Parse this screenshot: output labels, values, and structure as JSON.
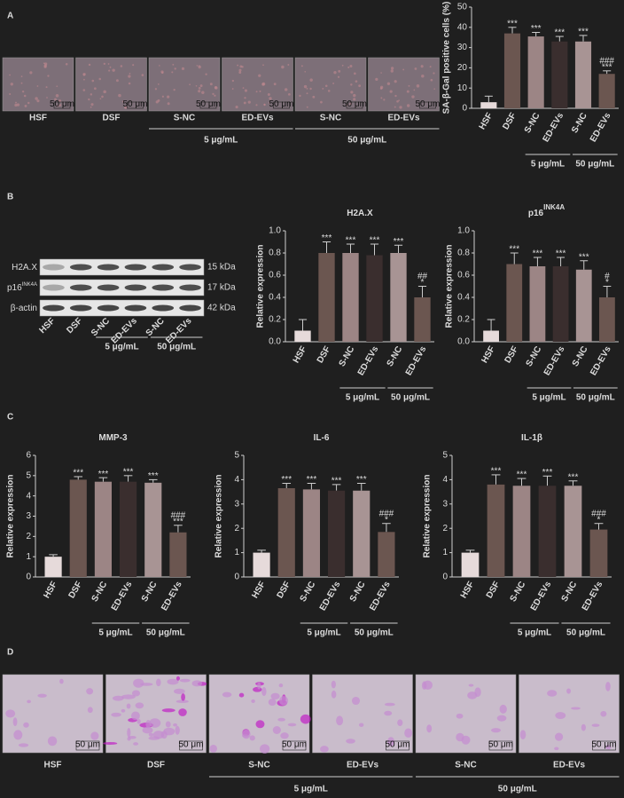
{
  "panels": {
    "labels": [
      "A",
      "B",
      "C",
      "D"
    ]
  },
  "panel_a_images": {
    "captions": [
      "HSF",
      "DSF",
      "S-NC",
      "ED-EVs",
      "S-NC",
      "ED-EVs"
    ],
    "scale_bar": "50 μm",
    "group_labels": [
      "5 μg/mL",
      "50 μg/mL"
    ]
  },
  "blot": {
    "lanes": [
      "HSF",
      "DSF",
      "S-NC",
      "ED-EVs",
      "S-NC",
      "ED-EVs"
    ],
    "rows": [
      {
        "label": "H2A.X",
        "size": "15 kDa"
      },
      {
        "label": "p16",
        "superscript": "INK4A",
        "size": "17 kDa"
      },
      {
        "label": "β-actin",
        "size": "42 kDa"
      }
    ],
    "group_labels": [
      "5 μg/mL",
      "50 μg/mL"
    ]
  },
  "panel_d_images": {
    "captions": [
      "HSF",
      "DSF",
      "S-NC",
      "ED-EVs",
      "S-NC",
      "ED-EVs"
    ],
    "scale_bar": "50 μm",
    "group_labels": [
      "5 μg/mL",
      "50 μg/mL"
    ]
  },
  "chart_data": [
    {
      "type": "bar",
      "y_label": "SA-β-Gal positive cells (%)",
      "categories": [
        "HSF",
        "DSF",
        "S-NC",
        "ED-EVs",
        "S-NC",
        "ED-EVs"
      ],
      "values": [
        3,
        37,
        35.5,
        33,
        33,
        17
      ],
      "errors": [
        3,
        3,
        2,
        2.5,
        3,
        1.5
      ],
      "annotations": [
        null,
        [
          "***"
        ],
        [
          "***"
        ],
        [
          "***"
        ],
        [
          "***"
        ],
        [
          "###",
          "***"
        ]
      ],
      "colors": [
        "#e6dada",
        "#6b5650",
        "#9c8585",
        "#3a2e2e",
        "#a89494",
        "#6b5650"
      ],
      "ylim": [
        0,
        50
      ],
      "yticks": [
        0,
        10,
        20,
        30,
        40,
        50
      ],
      "group_labels": [
        "5 μg/mL",
        "50 μg/mL"
      ]
    },
    {
      "type": "bar",
      "title": "H2A.X",
      "y_label": "Relative expression",
      "categories": [
        "HSF",
        "DSF",
        "S-NC",
        "ED-EVs",
        "S-NC",
        "ED-EVs"
      ],
      "values": [
        0.1,
        0.8,
        0.8,
        0.78,
        0.8,
        0.4
      ],
      "errors": [
        0.1,
        0.1,
        0.08,
        0.1,
        0.07,
        0.1
      ],
      "annotations": [
        null,
        [
          "***"
        ],
        [
          "***"
        ],
        [
          "***"
        ],
        [
          "***"
        ],
        [
          "##",
          "*"
        ]
      ],
      "colors": [
        "#e6dada",
        "#6b5650",
        "#9c8585",
        "#3a2e2e",
        "#a89494",
        "#6b5650"
      ],
      "ylim": [
        0,
        1
      ],
      "yticks": [
        {
          "value": 0,
          "label": "0.0"
        },
        0.2,
        0.4,
        0.6,
        0.8,
        {
          "value": 1,
          "label": "1.0"
        }
      ],
      "group_labels": [
        "5 μg/mL",
        "50 μg/mL"
      ]
    },
    {
      "type": "bar",
      "title": "p16",
      "title_superscript": "INK4A",
      "y_label": "Relative expression",
      "categories": [
        "HSF",
        "DSF",
        "S-NC",
        "ED-EVs",
        "S-NC",
        "ED-EVs"
      ],
      "values": [
        0.1,
        0.7,
        0.68,
        0.68,
        0.65,
        0.4
      ],
      "errors": [
        0.1,
        0.1,
        0.08,
        0.08,
        0.08,
        0.1
      ],
      "annotations": [
        null,
        [
          "***"
        ],
        [
          "***"
        ],
        [
          "***"
        ],
        [
          "***"
        ],
        [
          "#",
          "*"
        ]
      ],
      "colors": [
        "#e6dada",
        "#6b5650",
        "#9c8585",
        "#3a2e2e",
        "#a89494",
        "#6b5650"
      ],
      "ylim": [
        0,
        1
      ],
      "yticks": [
        {
          "value": 0,
          "label": "0.0"
        },
        0.2,
        0.4,
        0.6,
        0.8,
        {
          "value": 1,
          "label": "1.0"
        }
      ],
      "group_labels": [
        "5 μg/mL",
        "50 μg/mL"
      ]
    },
    {
      "type": "bar",
      "title": "MMP-3",
      "y_label": "Relative expression",
      "categories": [
        "HSF",
        "DSF",
        "S-NC",
        "ED-EVs",
        "S-NC",
        "ED-EVs"
      ],
      "values": [
        1,
        4.8,
        4.7,
        4.7,
        4.65,
        2.2
      ],
      "errors": [
        0.1,
        0.15,
        0.2,
        0.3,
        0.15,
        0.35
      ],
      "annotations": [
        null,
        [
          "***"
        ],
        [
          "***"
        ],
        [
          "***"
        ],
        [
          "***"
        ],
        [
          "###",
          "***"
        ]
      ],
      "colors": [
        "#e6dada",
        "#6b5650",
        "#9c8585",
        "#3a2e2e",
        "#a89494",
        "#6b5650"
      ],
      "ylim": [
        0,
        6
      ],
      "yticks": [
        0,
        1,
        2,
        3,
        4,
        5,
        6
      ],
      "group_labels": [
        "5 μg/mL",
        "50 μg/mL"
      ]
    },
    {
      "type": "bar",
      "title": "IL-6",
      "y_label": "Relative expression",
      "categories": [
        "HSF",
        "DSF",
        "S-NC",
        "ED-EVs",
        "S-NC",
        "ED-EVs"
      ],
      "values": [
        1,
        3.65,
        3.6,
        3.55,
        3.55,
        1.85
      ],
      "errors": [
        0.1,
        0.2,
        0.25,
        0.25,
        0.3,
        0.35
      ],
      "annotations": [
        null,
        [
          "***"
        ],
        [
          "***"
        ],
        [
          "***"
        ],
        [
          "***"
        ],
        [
          "###",
          "*"
        ]
      ],
      "colors": [
        "#e6dada",
        "#6b5650",
        "#9c8585",
        "#3a2e2e",
        "#a89494",
        "#6b5650"
      ],
      "ylim": [
        0,
        5
      ],
      "yticks": [
        0,
        1,
        2,
        3,
        4,
        5
      ],
      "group_labels": [
        "5 μg/mL",
        "50 μg/mL"
      ]
    },
    {
      "type": "bar",
      "title": "IL-1β",
      "y_label": "Relative expression",
      "categories": [
        "HSF",
        "DSF",
        "S-NC",
        "ED-EVs",
        "S-NC",
        "ED-EVs"
      ],
      "values": [
        1,
        3.8,
        3.75,
        3.75,
        3.75,
        1.95
      ],
      "errors": [
        0.1,
        0.4,
        0.3,
        0.4,
        0.2,
        0.25
      ],
      "annotations": [
        null,
        [
          "***"
        ],
        [
          "***"
        ],
        [
          "***"
        ],
        [
          "***"
        ],
        [
          "###",
          "*"
        ]
      ],
      "colors": [
        "#e6dada",
        "#6b5650",
        "#9c8585",
        "#3a2e2e",
        "#a89494",
        "#6b5650"
      ],
      "ylim": [
        0,
        5
      ],
      "yticks": [
        0,
        1,
        2,
        3,
        4,
        5
      ],
      "group_labels": [
        "5 μg/mL",
        "50 μg/mL"
      ]
    }
  ]
}
